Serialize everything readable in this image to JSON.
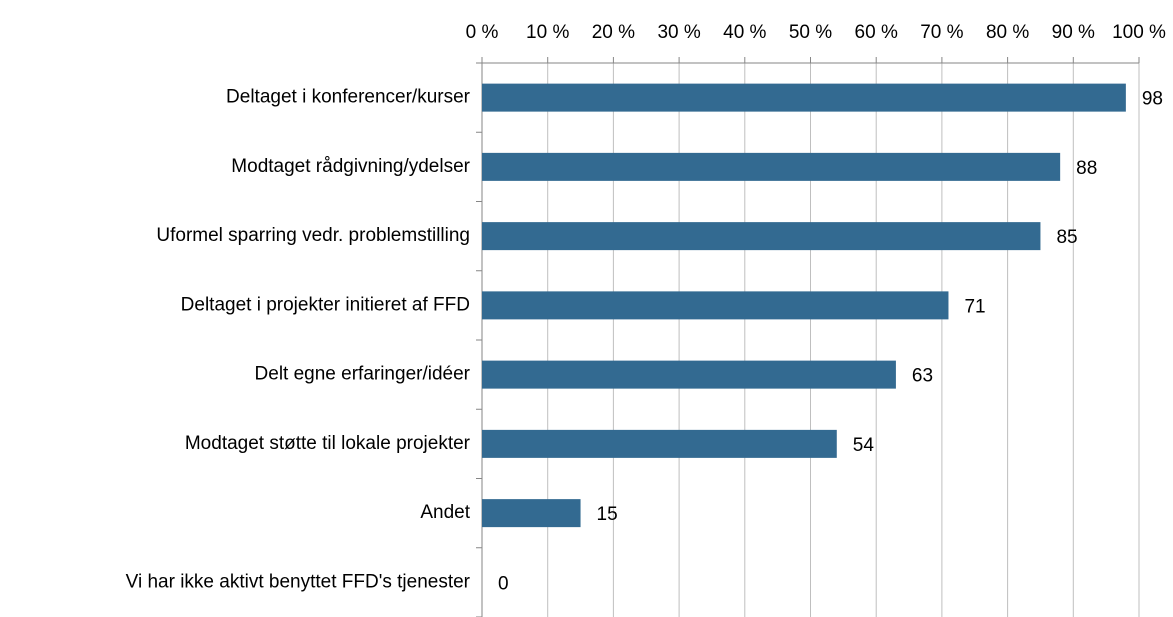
{
  "chart_data": {
    "type": "bar",
    "orientation": "horizontal",
    "categories": [
      "Deltaget i konferencer/kurser",
      "Modtaget rådgivning/ydelser",
      "Uformel sparring vedr. problemstilling",
      "Deltaget i projekter initieret af FFD",
      "Delt egne erfaringer/idéer",
      "Modtaget støtte til lokale projekter",
      "Andet",
      "Vi har ikke aktivt benyttet FFD's tjenester"
    ],
    "values": [
      98,
      88,
      85,
      71,
      63,
      54,
      15,
      0
    ],
    "color": "#336a91",
    "xlim": [
      0,
      100
    ],
    "xticks": [
      {
        "value": 0,
        "label": "0 %"
      },
      {
        "value": 10,
        "label": "10 %"
      },
      {
        "value": 20,
        "label": "20 %"
      },
      {
        "value": 30,
        "label": "30 %"
      },
      {
        "value": 40,
        "label": "40 %"
      },
      {
        "value": 50,
        "label": "50 %"
      },
      {
        "value": 60,
        "label": "60 %"
      },
      {
        "value": 70,
        "label": "70 %"
      },
      {
        "value": 80,
        "label": "80 %"
      },
      {
        "value": 90,
        "label": "90 %"
      },
      {
        "value": 100,
        "label": "100 %"
      }
    ],
    "grid": true
  }
}
